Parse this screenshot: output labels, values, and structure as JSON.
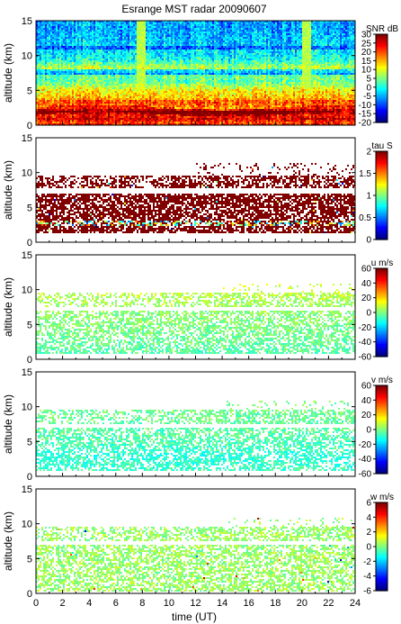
{
  "title": "Esrange MST radar 20090607",
  "xlabel": "time (UT)",
  "xticks": [
    "0",
    "2",
    "4",
    "6",
    "8",
    "10",
    "12",
    "14",
    "16",
    "18",
    "20",
    "22",
    "24"
  ],
  "colormap": [
    "#00008f",
    "#0000ff",
    "#0060ff",
    "#00bfff",
    "#20ffdf",
    "#80ff80",
    "#dfff20",
    "#ffbf00",
    "#ff6000",
    "#ff0000",
    "#8f0000"
  ],
  "chart_data": [
    {
      "type": "heatmap",
      "quantity": "SNR",
      "colorbar_label": "SNR dB",
      "ylabel": "altitude (km)",
      "xlim": [
        0,
        24
      ],
      "ylim": [
        0,
        15
      ],
      "yticks": [
        "0",
        "5",
        "10",
        "15"
      ],
      "clim": [
        -20,
        30
      ],
      "cticks": [
        "30",
        "25",
        "20",
        "15",
        "10",
        "5",
        "0",
        "-5",
        "-10",
        "-15",
        "-20"
      ],
      "profile": [
        [
          0.0,
          24
        ],
        [
          0.5,
          20
        ],
        [
          1.0,
          26
        ],
        [
          1.5,
          22
        ],
        [
          2.0,
          28
        ],
        [
          2.5,
          16
        ],
        [
          3.0,
          18
        ],
        [
          3.5,
          21
        ],
        [
          4.0,
          14
        ],
        [
          4.5,
          13
        ],
        [
          5.0,
          12
        ],
        [
          5.5,
          9
        ],
        [
          6.0,
          5
        ],
        [
          6.5,
          3
        ],
        [
          7.0,
          4
        ],
        [
          7.5,
          2
        ],
        [
          8.0,
          6
        ],
        [
          8.5,
          7
        ],
        [
          9.0,
          3
        ],
        [
          9.5,
          0
        ],
        [
          10.0,
          -2
        ],
        [
          11.0,
          -3
        ],
        [
          12.0,
          -4
        ],
        [
          13.0,
          -5
        ],
        [
          14.0,
          -6
        ],
        [
          15.0,
          -6
        ]
      ],
      "vertical_bands_ut": [
        7.8,
        20.3
      ]
    },
    {
      "type": "heatmap",
      "quantity": "tau",
      "colorbar_label": "tau S",
      "ylabel": "altitude (km)",
      "xlim": [
        0,
        24
      ],
      "ylim": [
        0,
        15
      ],
      "yticks": [
        "0",
        "5",
        "10",
        "15"
      ],
      "clim": [
        0,
        2
      ],
      "cticks": [
        "2",
        "1.5",
        "1",
        "0.5",
        "0"
      ],
      "dominant_value": 2.0,
      "layers_km": [
        [
          1.5,
          7.0
        ],
        [
          7.8,
          9.8
        ]
      ],
      "low_tau_layer_km": 2.8
    },
    {
      "type": "heatmap",
      "quantity": "u",
      "colorbar_label": "u m/s",
      "ylabel": "altitude (km)",
      "xlim": [
        0,
        24
      ],
      "ylim": [
        0,
        15
      ],
      "yticks": [
        "0",
        "5",
        "10",
        "15"
      ],
      "clim": [
        -60,
        60
      ],
      "cticks": [
        "60",
        "40",
        "20",
        "0",
        "-20",
        "-40",
        "-60"
      ],
      "profile": [
        [
          1,
          -5
        ],
        [
          3,
          -2
        ],
        [
          5,
          0
        ],
        [
          7,
          2
        ],
        [
          9,
          6
        ],
        [
          10,
          9
        ],
        [
          11,
          10
        ]
      ],
      "layers_km": [
        [
          0.8,
          7.0
        ],
        [
          7.5,
          9.8
        ]
      ]
    },
    {
      "type": "heatmap",
      "quantity": "v",
      "colorbar_label": "v m/s",
      "ylabel": "altitude (km)",
      "xlim": [
        0,
        24
      ],
      "ylim": [
        0,
        15
      ],
      "yticks": [
        "0",
        "5",
        "10",
        "15"
      ],
      "clim": [
        -60,
        60
      ],
      "cticks": [
        "60",
        "40",
        "20",
        "0",
        "-20",
        "-40",
        "-60"
      ],
      "profile": [
        [
          1,
          -8
        ],
        [
          3,
          -10
        ],
        [
          5,
          -6
        ],
        [
          7,
          -4
        ],
        [
          9,
          -2
        ],
        [
          10,
          -1
        ],
        [
          11,
          0
        ]
      ],
      "layers_km": [
        [
          0.8,
          7.0
        ],
        [
          7.5,
          9.8
        ]
      ]
    },
    {
      "type": "heatmap",
      "quantity": "w",
      "colorbar_label": "w m/s",
      "ylabel": "altitude (km)",
      "xlim": [
        0,
        24
      ],
      "ylim": [
        0,
        15
      ],
      "yticks": [
        "0",
        "5",
        "10",
        "15"
      ],
      "clim": [
        -6,
        6
      ],
      "cticks": [
        "6",
        "4",
        "2",
        "0",
        "-2",
        "-4",
        "-6"
      ],
      "dominant_value": 0.3,
      "layers_km": [
        [
          0.5,
          7.0
        ],
        [
          7.5,
          9.8
        ]
      ]
    }
  ]
}
